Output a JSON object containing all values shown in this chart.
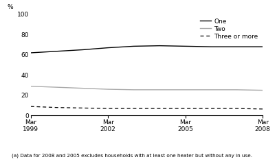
{
  "x_values": [
    1999,
    2000,
    2001,
    2002,
    2003,
    2004,
    2005,
    2006,
    2007,
    2008
  ],
  "one_values": [
    61.5,
    63.0,
    64.5,
    66.5,
    68.0,
    68.5,
    68.0,
    67.5,
    67.5,
    67.5
  ],
  "two_values": [
    28.5,
    27.5,
    26.5,
    25.5,
    25.0,
    25.0,
    25.0,
    25.0,
    25.0,
    24.5
  ],
  "three_values": [
    8.5,
    7.5,
    7.0,
    6.5,
    6.5,
    6.5,
    6.5,
    6.5,
    6.5,
    6.0
  ],
  "xtick_positions": [
    1999,
    2002,
    2005,
    2008
  ],
  "xtick_labels": [
    "Mar\n1999",
    "Mar\n2002",
    "Mar\n2005",
    "Mar\n2008"
  ],
  "ytick_positions": [
    0,
    20,
    40,
    60,
    80,
    100
  ],
  "ylim": [
    0,
    100
  ],
  "xlim": [
    1999,
    2008
  ],
  "ylabel": "%",
  "color_one": "#000000",
  "color_two": "#aaaaaa",
  "color_three": "#000000",
  "legend_labels": [
    "One",
    "Two",
    "Three or more"
  ],
  "footnote": "(a) Data for 2008 and 2005 excludes households with at least one heater but without any in use.",
  "background_color": "#ffffff"
}
